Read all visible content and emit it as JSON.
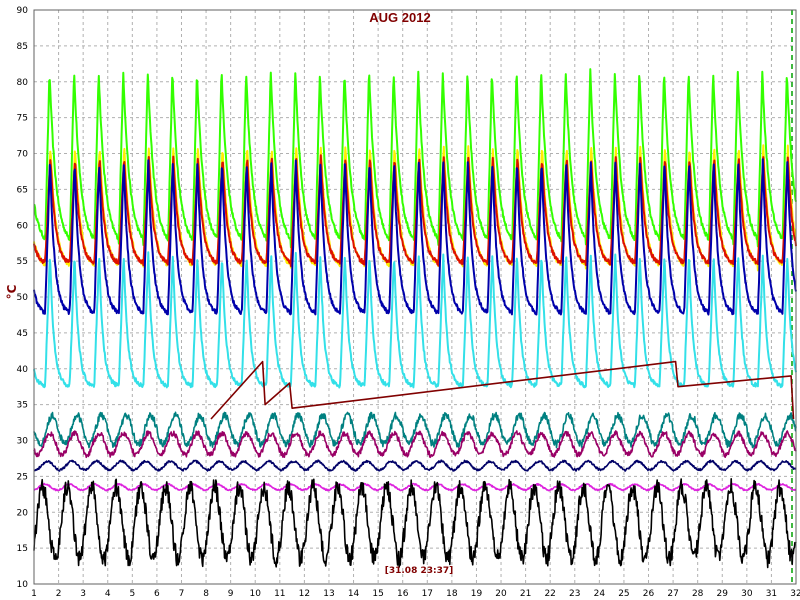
{
  "chart_data": {
    "type": "line",
    "title": "AUG 2012",
    "ylabel": "°C",
    "xlabel": "",
    "timestamp": "[31.08 23:37]",
    "xlim": [
      1,
      32
    ],
    "ylim": [
      10,
      90
    ],
    "x_ticks": [
      1,
      2,
      3,
      4,
      5,
      6,
      7,
      8,
      9,
      10,
      11,
      12,
      13,
      14,
      15,
      16,
      17,
      18,
      19,
      20,
      21,
      22,
      23,
      24,
      25,
      26,
      27,
      28,
      29,
      30,
      31,
      32
    ],
    "y_ticks": [
      10,
      15,
      20,
      25,
      30,
      35,
      40,
      45,
      50,
      55,
      60,
      65,
      70,
      75,
      80,
      85,
      90
    ],
    "grid": true,
    "legend": "none",
    "colors": {
      "title": "#800000",
      "ylabel": "#800000",
      "stamp": "#800000",
      "grid": "#b0b0b0",
      "marker": "#00a000"
    },
    "series": [
      {
        "color": "#33ff00",
        "kind": "daily",
        "peak": 81.5,
        "trough": 57,
        "peak_frac": 0.18,
        "decay": 2.2
      },
      {
        "color": "#ffee00",
        "kind": "daily",
        "peak": 71,
        "trough": 54,
        "peak_frac": 0.22,
        "decay": 2.5
      },
      {
        "color": "#dd1100",
        "kind": "daily",
        "peak": 69.5,
        "trough": 54.5,
        "peak_frac": 0.22,
        "decay": 2.8
      },
      {
        "color": "#0000aa",
        "kind": "daily",
        "peak": 69,
        "trough": 47.5,
        "peak_frac": 0.2,
        "decay": 3.0
      },
      {
        "color": "#33e0e8",
        "kind": "daily",
        "peak": 56,
        "trough": 37.5,
        "peak_frac": 0.2,
        "decay": 3.5
      },
      {
        "color": "#008080",
        "kind": "wave",
        "base": 31.5,
        "amp": 2.0
      },
      {
        "color": "#990066",
        "kind": "wave",
        "base": 29.5,
        "amp": 1.5
      },
      {
        "color": "#000066",
        "kind": "wave",
        "base": 26.5,
        "amp": 0.6
      },
      {
        "color": "#dd22dd",
        "kind": "wave",
        "base": 23.5,
        "amp": 0.4
      },
      {
        "color": "#000000",
        "kind": "wave",
        "base": 18.5,
        "amp": 5.0
      },
      {
        "color": "#800000",
        "kind": "polyline",
        "points": [
          [
            8.2,
            33
          ],
          [
            10.3,
            41
          ],
          [
            10.4,
            35
          ],
          [
            11.4,
            38
          ],
          [
            11.5,
            34.5
          ],
          [
            27.1,
            41
          ],
          [
            27.2,
            37.5
          ],
          [
            31.8,
            39
          ],
          [
            31.9,
            33
          ]
        ]
      }
    ]
  }
}
